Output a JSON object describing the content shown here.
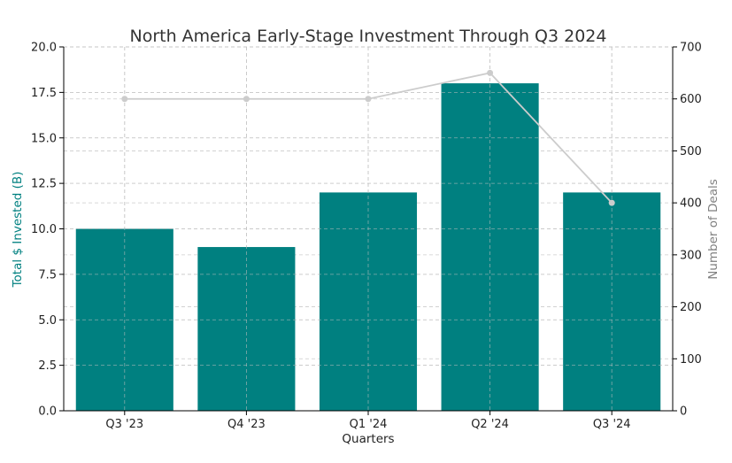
{
  "chart_data": {
    "type": "bar+line",
    "title": "North America Early-Stage Investment Through Q3 2024",
    "xlabel": "Quarters",
    "categories": [
      "Q3 '23",
      "Q4 '23",
      "Q1 '24",
      "Q2 '24",
      "Q3 '24"
    ],
    "series": [
      {
        "kind": "bar",
        "axis": "left",
        "color": "#008080",
        "values": [
          10.0,
          9.0,
          12.0,
          18.0,
          12.0
        ]
      },
      {
        "kind": "line",
        "axis": "right",
        "color": "#cccccc",
        "values": [
          600,
          600,
          600,
          650,
          400
        ]
      }
    ],
    "y_left": {
      "label": "Total $ Invested (B)",
      "label_color": "#008080",
      "range": [
        0,
        20
      ],
      "ticks": [
        "0.0",
        "2.5",
        "5.0",
        "7.5",
        "10.0",
        "12.5",
        "15.0",
        "17.5",
        "20.0"
      ]
    },
    "y_right": {
      "label": "Number of Deals",
      "label_color": "#808080",
      "range": [
        0,
        700
      ],
      "ticks": [
        "0",
        "100",
        "200",
        "300",
        "400",
        "500",
        "600",
        "700"
      ]
    },
    "grid": true,
    "legend": "none"
  }
}
